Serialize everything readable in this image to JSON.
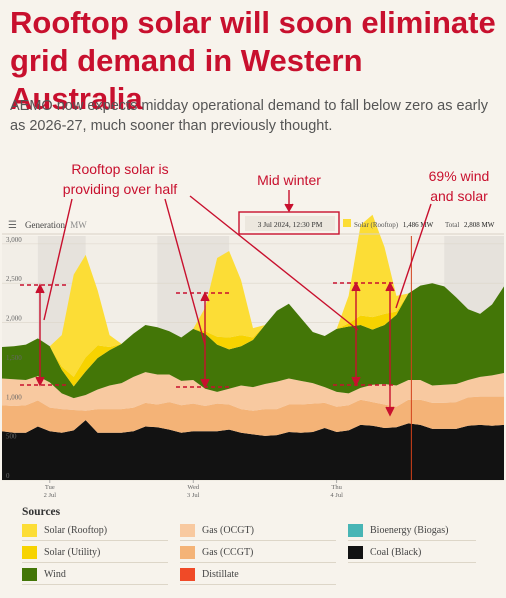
{
  "headline": "Rooftop solar will soon eliminate grid demand in Western Australia",
  "subtitle": "AEMO now expects midday operational demand to fall below zero as early as 2026-27, much sooner than previously thought.",
  "colors": {
    "coal": "#121212",
    "gas_ccgt": "#f4b377",
    "gas_ocgt": "#f8c9a0",
    "wind": "#437607",
    "solar_rooftop": "#fcdd36",
    "solar_utility": "#f7d300",
    "distillate": "#f04a27",
    "bioenergy": "#48b5b5",
    "annotation": "#c8102e",
    "night_band": "#e6e2dc"
  },
  "chart_data": {
    "type": "area",
    "title": "Generation",
    "ylabel": "MW",
    "ylim": [
      0,
      3100
    ],
    "yticks": [
      "0",
      "500",
      "1,000",
      "1,500",
      "2,000",
      "2,500",
      "3,000"
    ],
    "ytick_values": [
      0,
      500,
      1000,
      1500,
      2000,
      2500,
      3000
    ],
    "x_range_hours": [
      -8,
      76
    ],
    "xticks": [
      {
        "label": "Tue",
        "sub": "2 Jul",
        "hour": 0
      },
      {
        "label": "Wed",
        "sub": "3 Jul",
        "hour": 24
      },
      {
        "label": "Thu",
        "sub": "4 Jul",
        "hour": 48
      }
    ],
    "x_hours": [
      -8,
      -6,
      -4,
      -2,
      0,
      2,
      4,
      6,
      8,
      10,
      12,
      14,
      16,
      18,
      20,
      22,
      24,
      26,
      28,
      30,
      32,
      34,
      36,
      38,
      40,
      42,
      44,
      46,
      48,
      50,
      52,
      54,
      56,
      58,
      60,
      62,
      64,
      66,
      68,
      70,
      72,
      74,
      76
    ],
    "series": [
      {
        "name": "Coal (Black)",
        "key": "coal",
        "values": [
          620,
          600,
          600,
          680,
          620,
          600,
          630,
          760,
          600,
          600,
          600,
          620,
          680,
          670,
          640,
          600,
          620,
          620,
          620,
          640,
          600,
          580,
          560,
          570,
          610,
          600,
          610,
          660,
          610,
          630,
          700,
          690,
          660,
          670,
          720,
          700,
          650,
          650,
          650,
          690,
          700,
          690,
          700
        ]
      },
      {
        "name": "Gas (CCGT)",
        "key": "gas_ccgt",
        "values": [
          330,
          340,
          350,
          330,
          300,
          300,
          260,
          120,
          300,
          300,
          300,
          300,
          300,
          290,
          350,
          350,
          350,
          320,
          350,
          320,
          300,
          300,
          340,
          330,
          350,
          360,
          360,
          320,
          320,
          320,
          320,
          300,
          300,
          260,
          300,
          320,
          330,
          330,
          340,
          360,
          360,
          370,
          360
        ]
      },
      {
        "name": "Gas (OCGT)",
        "key": "gas_ocgt",
        "values": [
          340,
          340,
          320,
          310,
          320,
          200,
          150,
          200,
          250,
          300,
          330,
          390,
          390,
          380,
          350,
          310,
          300,
          220,
          150,
          200,
          300,
          300,
          320,
          350,
          330,
          300,
          260,
          200,
          190,
          150,
          150,
          220,
          260,
          270,
          250,
          250,
          220,
          230,
          230,
          220,
          250,
          270,
          300
        ]
      },
      {
        "name": "Distillate",
        "key": "distillate",
        "values": [
          0,
          0,
          0,
          0,
          0,
          0,
          0,
          0,
          0,
          0,
          0,
          0,
          0,
          0,
          0,
          0,
          0,
          0,
          0,
          0,
          0,
          0,
          0,
          0,
          0,
          0,
          0,
          0,
          0,
          0,
          0,
          0,
          0,
          0,
          0,
          0,
          0,
          0,
          0,
          0,
          0,
          0,
          0
        ]
      },
      {
        "name": "Bioenergy (Biogas)",
        "key": "bioenergy",
        "values": [
          0,
          0,
          0,
          0,
          0,
          0,
          0,
          0,
          0,
          0,
          0,
          0,
          0,
          0,
          0,
          0,
          0,
          0,
          0,
          0,
          0,
          0,
          0,
          0,
          0,
          0,
          0,
          0,
          0,
          0,
          0,
          0,
          0,
          0,
          0,
          0,
          0,
          0,
          0,
          0,
          0,
          0,
          0
        ]
      },
      {
        "name": "Wind",
        "key": "wind",
        "values": [
          400,
          420,
          450,
          480,
          460,
          300,
          150,
          300,
          400,
          450,
          500,
          550,
          600,
          600,
          550,
          550,
          650,
          700,
          600,
          500,
          500,
          600,
          750,
          900,
          950,
          800,
          650,
          650,
          800,
          850,
          800,
          700,
          750,
          900,
          1100,
          1200,
          1300,
          1250,
          1100,
          900,
          800,
          900,
          1100
        ]
      },
      {
        "name": "Solar (Utility)",
        "key": "solar_utility",
        "values": [
          0,
          0,
          0,
          0,
          0,
          40,
          120,
          180,
          160,
          40,
          0,
          0,
          0,
          0,
          0,
          0,
          0,
          30,
          100,
          150,
          140,
          30,
          0,
          0,
          0,
          0,
          0,
          0,
          0,
          40,
          120,
          160,
          140,
          40,
          0,
          0,
          0,
          0,
          0,
          0,
          0,
          0,
          0
        ]
      },
      {
        "name": "Solar (Rooftop)",
        "key": "solar_rooftop",
        "values": [
          0,
          0,
          0,
          0,
          0,
          400,
          1300,
          1300,
          700,
          150,
          0,
          0,
          0,
          0,
          0,
          0,
          0,
          300,
          1000,
          1100,
          700,
          120,
          0,
          0,
          0,
          0,
          0,
          0,
          0,
          350,
          1150,
          1300,
          850,
          200,
          0,
          0,
          0,
          0,
          0,
          0,
          0,
          0,
          0
        ]
      }
    ],
    "night_bands_hours": [
      [
        -2,
        6
      ],
      [
        18,
        30
      ],
      [
        66,
        76
      ]
    ],
    "cursor_hour": 60.5,
    "tooltip": {
      "time": "3 Jul 2024, 12:30 PM",
      "solar_label": "Solar (Rooftop)",
      "solar_value": "1,486 MW",
      "total_label": "Total",
      "total_value": "2,808 MW"
    },
    "annotations": [
      {
        "text_lines": [
          "Rooftop solar is",
          "providing over half"
        ]
      },
      {
        "text_lines": [
          "Mid winter"
        ]
      },
      {
        "text_lines": [
          "69% wind",
          "and solar"
        ]
      }
    ]
  },
  "legend": {
    "title": "Sources",
    "items": [
      {
        "key": "solar_rooftop",
        "label": "Solar (Rooftop)"
      },
      {
        "key": "gas_ocgt",
        "label": "Gas (OCGT)"
      },
      {
        "key": "bioenergy",
        "label": "Bioenergy (Biogas)"
      },
      {
        "key": "solar_utility",
        "label": "Solar (Utility)"
      },
      {
        "key": "gas_ccgt",
        "label": "Gas (CCGT)"
      },
      {
        "key": "coal",
        "label": "Coal (Black)"
      },
      {
        "key": "wind",
        "label": "Wind"
      },
      {
        "key": "distillate",
        "label": "Distillate"
      }
    ]
  }
}
